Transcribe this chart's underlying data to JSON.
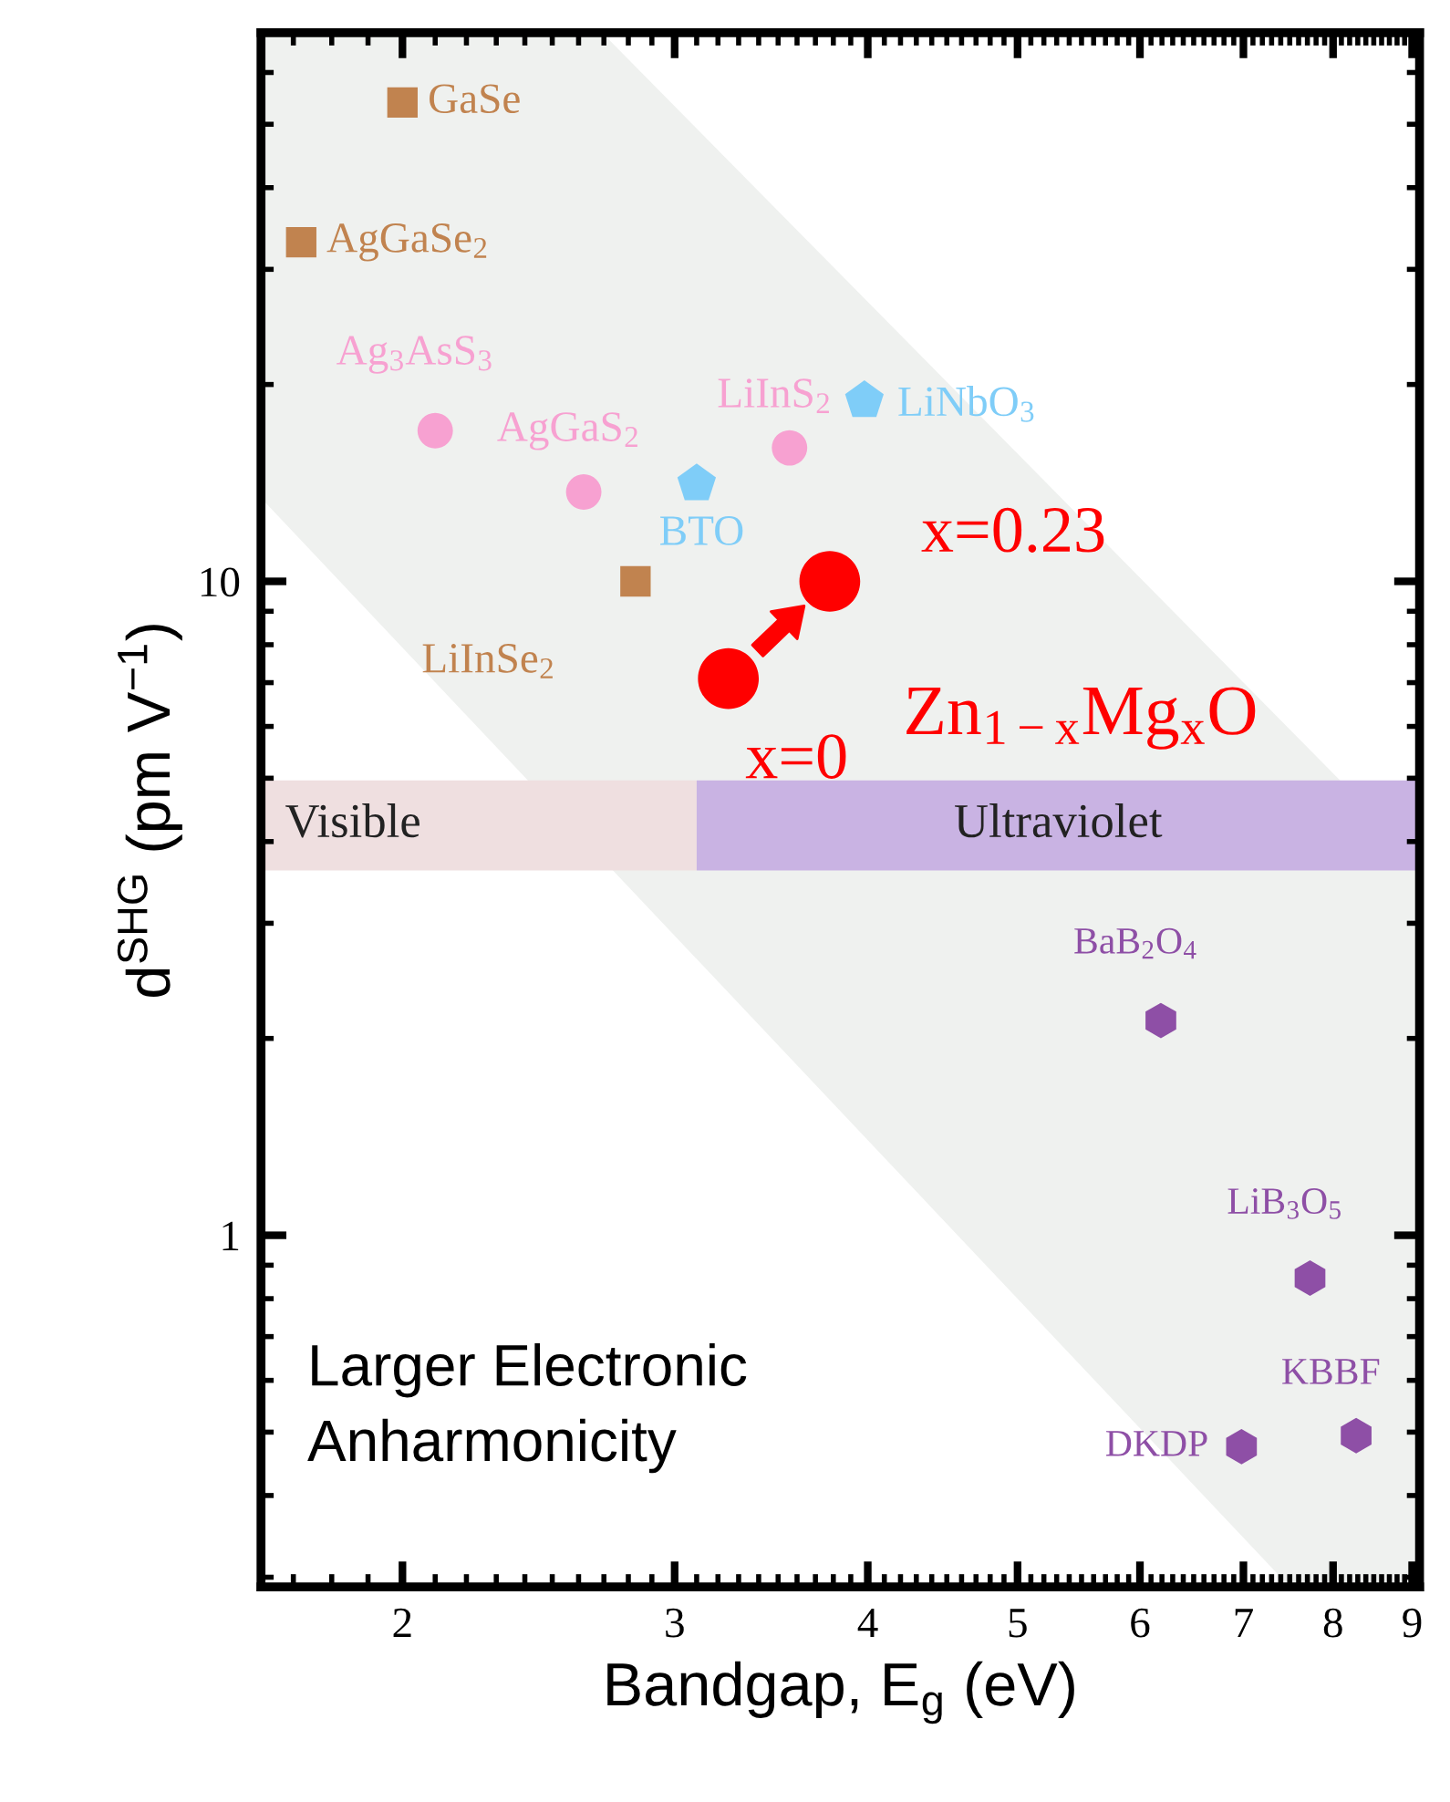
{
  "chart_data": {
    "type": "scatter",
    "xlabel": "Bandgap, E$_{g}$ (eV)",
    "ylabel": "d$^{SHG}$ (pm V$^{−1}$)",
    "log": "xy",
    "xlim": [
      1.62,
      9.1
    ],
    "ylim": [
      0.29,
      69
    ],
    "xticks": [
      2,
      3,
      4,
      5,
      6,
      7,
      8,
      9
    ],
    "yticks": [
      1,
      10
    ],
    "grid": false,
    "legend": false,
    "series": [
      {
        "name": "GaSe",
        "color": "#c1834f",
        "marker": "square",
        "x": [
          2.0
        ],
        "values": [
          54
        ]
      },
      {
        "name": "AgGaSe$_{2}$",
        "color": "#c1834f",
        "marker": "square",
        "x": [
          1.72
        ],
        "values": [
          33
        ]
      },
      {
        "name": "LiInSe$_{2}$",
        "color": "#c1834f",
        "marker": "square",
        "x": [
          2.83
        ],
        "values": [
          10
        ]
      },
      {
        "name": "Ag$_{3}$AsS$_{3}$",
        "color": "#f7a1d1",
        "marker": "circle",
        "x": [
          2.1
        ],
        "values": [
          17
        ]
      },
      {
        "name": "AgGaS$_{2}$",
        "color": "#f7a1d1",
        "marker": "circle",
        "x": [
          2.62
        ],
        "values": [
          13.7
        ]
      },
      {
        "name": "LiInS$_{2}$",
        "color": "#f7a1d1",
        "marker": "circle",
        "x": [
          3.56
        ],
        "values": [
          16
        ]
      },
      {
        "name": "BTO",
        "color": "#7fcdf8",
        "x": [
          3.1
        ],
        "values": [
          14.1
        ]
      },
      {
        "name": "LiNbO$_{3}$",
        "color": "#7fcdf8",
        "x": [
          3.98
        ],
        "values": [
          18.9
        ]
      },
      {
        "name": "BaB$_{2}$O$_{4}$",
        "color": "#8e4fa6",
        "x": [
          6.19
        ],
        "values": [
          2.13
        ]
      },
      {
        "name": "LiB$_{3}$O$_{5}$",
        "color": "#8e4fa6",
        "x": [
          7.73
        ],
        "values": [
          0.86
        ]
      },
      {
        "name": "DKDP",
        "color": "#8e4fa6",
        "x": [
          6.98
        ],
        "values": [
          0.475
        ]
      },
      {
        "name": "KBBF",
        "color": "#8e4fa6",
        "x": [
          8.28
        ],
        "values": [
          0.494
        ]
      },
      {
        "name": "Zn$_{1−x}$Mg$_{x}$O",
        "color": "#ff0000",
        "marker": "circle",
        "x": [
          3.25,
          3.78
        ],
        "values": [
          7.1,
          10
        ]
      }
    ],
    "annotations": [
      {
        "text": "x=0",
        "x": 3.25,
        "y": 7.1
      },
      {
        "text": "x=0.23",
        "x": 3.78,
        "y": 10
      },
      "Larger Electronic\nAnharmonicity"
    ],
    "bands": [
      {
        "axis": "x",
        "from": 1.62,
        "to": 3.1,
        "label": "Visible",
        "color": "#efdfe0"
      },
      {
        "axis": "x",
        "from": 3.1,
        "to": 9.1,
        "label": "Ultraviolet",
        "color": "#c9b3e3"
      }
    ]
  }
}
